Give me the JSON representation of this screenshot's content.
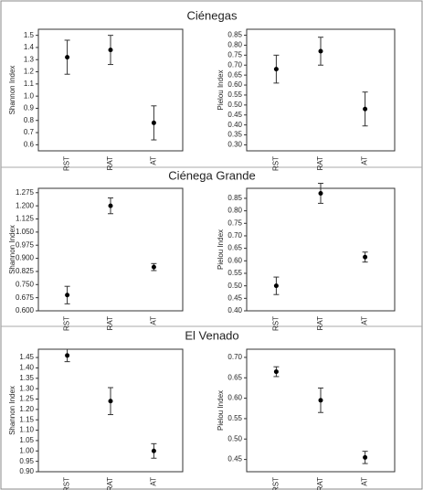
{
  "sections": [
    {
      "title": "Ciénegas"
    },
    {
      "title": "Ciénega Grande"
    },
    {
      "title": "El Venado"
    }
  ],
  "chart_data": [
    {
      "type": "errorbar",
      "ylabel": "Shannon Index",
      "categories": [
        "RST",
        "RAT",
        "AT"
      ],
      "values": [
        1.32,
        1.38,
        0.78
      ],
      "errors": [
        0.14,
        0.12,
        0.14
      ],
      "color": "#000000",
      "ylim": [
        0.55,
        1.55
      ],
      "yticks": [
        0.6,
        0.7,
        0.8,
        0.9,
        {
          "value": 1,
          "label": "1.0"
        },
        1.1,
        1.2,
        1.3,
        1.4,
        1.5
      ]
    },
    {
      "type": "errorbar",
      "ylabel": "Pielou Index",
      "categories": [
        "RST",
        "RAT",
        "AT"
      ],
      "values": [
        0.68,
        0.77,
        0.48
      ],
      "errors": [
        0.07,
        0.07,
        0.085
      ],
      "color": "#000000",
      "ylim": [
        0.27,
        0.88
      ],
      "yticks": [
        {
          "value": 0.3,
          "label": "0.30"
        },
        0.35,
        {
          "value": 0.4,
          "label": "0.40"
        },
        0.45,
        {
          "value": 0.5,
          "label": "0.50"
        },
        0.55,
        {
          "value": 0.6,
          "label": "0.60"
        },
        0.65,
        {
          "value": 0.7,
          "label": "0.70"
        },
        0.75,
        {
          "value": 0.8,
          "label": "0.80"
        },
        0.85
      ]
    },
    {
      "type": "errorbar",
      "ylabel": "Shannon Index",
      "categories": [
        "RST",
        "RAT",
        "AT"
      ],
      "values": [
        0.69,
        1.2,
        0.85
      ],
      "errors": [
        0.05,
        0.045,
        0.02
      ],
      "color": "#000000",
      "ylim": [
        0.6,
        1.3
      ],
      "yticks": [
        {
          "value": 0.6,
          "label": "0.600"
        },
        0.675,
        {
          "value": 0.75,
          "label": "0.750"
        },
        0.825,
        {
          "value": 0.9,
          "label": "0.900"
        },
        0.975,
        {
          "value": 1.05,
          "label": "1.050"
        },
        1.125,
        {
          "value": 1.2,
          "label": "1.200"
        },
        1.275
      ]
    },
    {
      "type": "errorbar",
      "ylabel": "Pielou Index",
      "categories": [
        "RST",
        "RAT",
        "AT"
      ],
      "values": [
        0.5,
        0.87,
        0.615
      ],
      "errors": [
        0.035,
        0.04,
        0.02
      ],
      "color": "#000000",
      "ylim": [
        0.4,
        0.89
      ],
      "yticks": [
        {
          "value": 0.4,
          "label": "0.40"
        },
        0.45,
        {
          "value": 0.5,
          "label": "0.50"
        },
        0.55,
        {
          "value": 0.6,
          "label": "0.60"
        },
        0.65,
        {
          "value": 0.7,
          "label": "0.70"
        },
        0.75,
        {
          "value": 0.8,
          "label": "0.80"
        },
        0.85
      ]
    },
    {
      "type": "errorbar",
      "ylabel": "Shannon Index",
      "categories": [
        "RST",
        "RAT",
        "AT"
      ],
      "values": [
        1.46,
        1.24,
        1.0
      ],
      "errors": [
        0.03,
        0.065,
        0.035
      ],
      "color": "#000000",
      "ylim": [
        0.9,
        1.49
      ],
      "yticks": [
        {
          "value": 0.9,
          "label": "0.90"
        },
        0.95,
        {
          "value": 1,
          "label": "1.00"
        },
        1.05,
        {
          "value": 1.1,
          "label": "1.10"
        },
        1.15,
        {
          "value": 1.2,
          "label": "1.20"
        },
        1.25,
        {
          "value": 1.3,
          "label": "1.30"
        },
        1.35,
        {
          "value": 1.4,
          "label": "1.40"
        },
        1.45
      ]
    },
    {
      "type": "errorbar",
      "ylabel": "Pielou Index",
      "categories": [
        "RST",
        "RAT",
        "AT"
      ],
      "values": [
        0.665,
        0.595,
        0.455
      ],
      "errors": [
        0.012,
        0.03,
        0.015
      ],
      "color": "#000000",
      "ylim": [
        0.42,
        0.72
      ],
      "yticks": [
        0.45,
        {
          "value": 0.5,
          "label": "0.50"
        },
        0.55,
        {
          "value": 0.6,
          "label": "0.60"
        },
        0.65,
        {
          "value": 0.7,
          "label": "0.70"
        }
      ]
    }
  ]
}
